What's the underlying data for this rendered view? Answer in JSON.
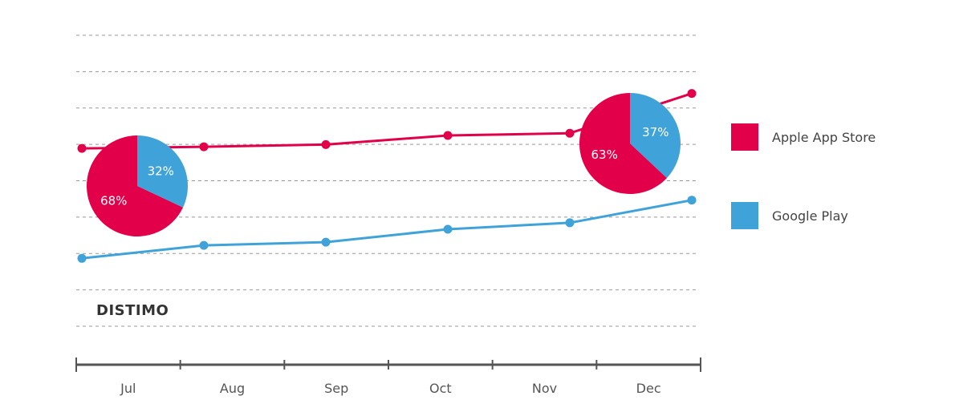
{
  "brand": "DISTIMO",
  "colors": {
    "apple": "#e2004a",
    "google": "#3fa3da",
    "grid": "#999999",
    "axis": "#555555"
  },
  "chart_data": {
    "type": "line",
    "title": "",
    "xlabel": "",
    "ylabel": "",
    "categories": [
      "Jul",
      "Aug",
      "Sep",
      "Oct",
      "Nov",
      "Dec"
    ],
    "x_points": [
      "Jul",
      "Aug",
      "Sep",
      "Oct",
      "Nov",
      "Dec"
    ],
    "grid": true,
    "y_axis_labels_shown": false,
    "ylim": [
      0,
      9
    ],
    "series": [
      {
        "name": "Apple App Store",
        "color": "#e2004a",
        "values": [
          5.5,
          5.55,
          5.62,
          5.9,
          5.97,
          7.2
        ]
      },
      {
        "name": "Google Play",
        "color": "#3fa3da",
        "values": [
          2.1,
          2.5,
          2.6,
          3.0,
          3.2,
          3.9
        ]
      }
    ],
    "legend": {
      "position": "right",
      "entries": [
        "Apple App Store",
        "Google Play"
      ]
    },
    "annotations": [
      {
        "type": "pie",
        "at": "Jul",
        "slices": [
          {
            "label": "68%",
            "value": 68,
            "series": "Apple App Store"
          },
          {
            "label": "32%",
            "value": 32,
            "series": "Google Play"
          }
        ]
      },
      {
        "type": "pie",
        "at": "Dec",
        "slices": [
          {
            "label": "63%",
            "value": 63,
            "series": "Apple App Store"
          },
          {
            "label": "37%",
            "value": 37,
            "series": "Google Play"
          }
        ]
      }
    ]
  }
}
